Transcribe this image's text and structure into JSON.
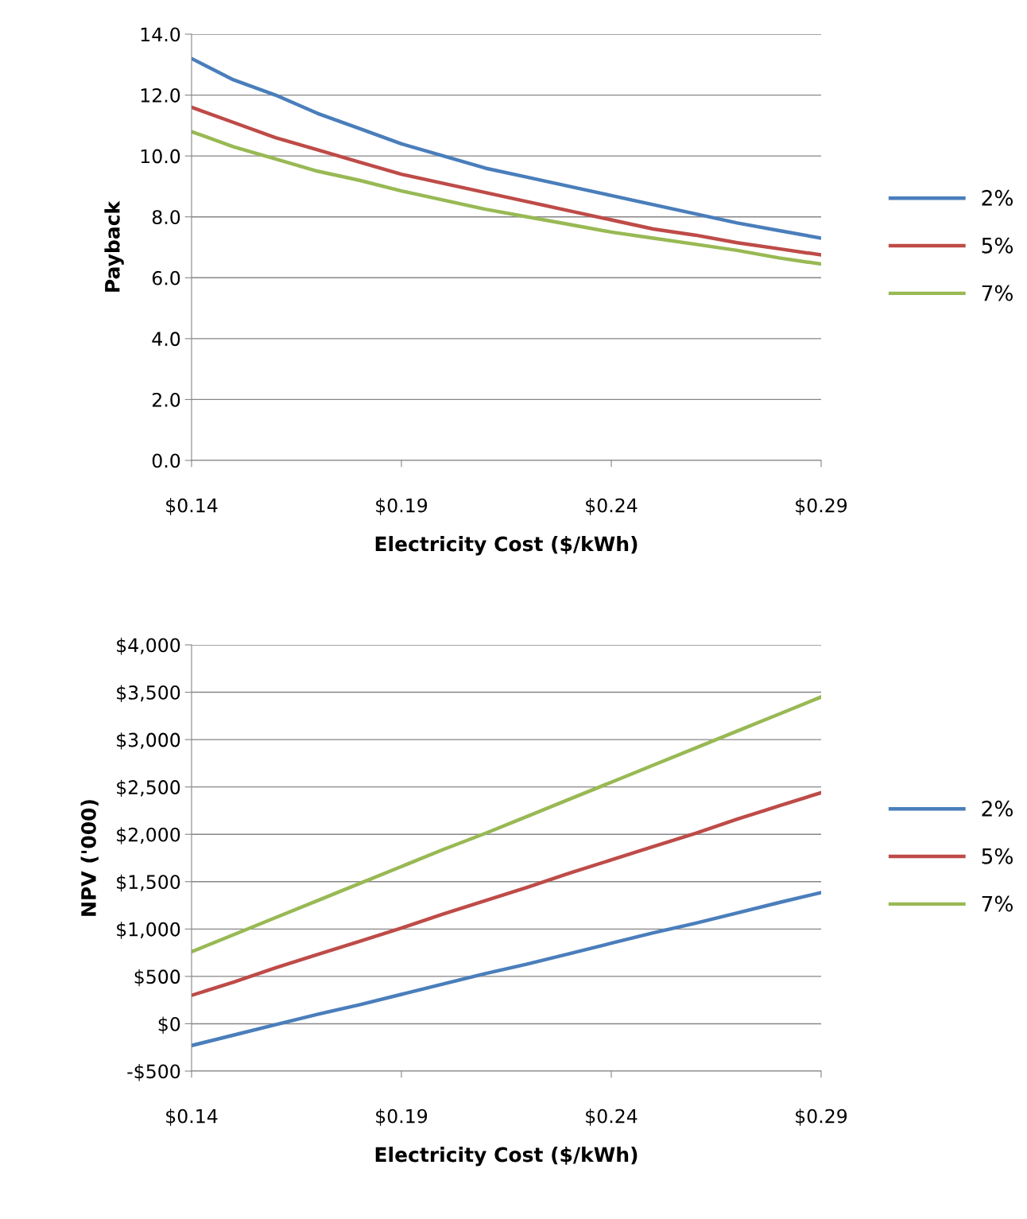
{
  "chart_data": [
    {
      "type": "line",
      "ylabel": "Payback",
      "xlabel": "Electricity Cost ($/kWh)",
      "x": [
        0.14,
        0.15,
        0.16,
        0.17,
        0.18,
        0.19,
        0.2,
        0.21,
        0.22,
        0.23,
        0.24,
        0.25,
        0.26,
        0.27,
        0.28,
        0.29
      ],
      "xlim": [
        0.14,
        0.29
      ],
      "xticks": [
        {
          "value": 0.14,
          "label": "$0.14"
        },
        {
          "value": 0.19,
          "label": "$0.19"
        },
        {
          "value": 0.24,
          "label": "$0.24"
        },
        {
          "value": 0.29,
          "label": "$0.29"
        }
      ],
      "ylim": [
        0,
        14
      ],
      "yticks": [
        {
          "value": 0,
          "label": "0.0"
        },
        {
          "value": 2,
          "label": "2.0"
        },
        {
          "value": 4,
          "label": "4.0"
        },
        {
          "value": 6,
          "label": "6.0"
        },
        {
          "value": 8,
          "label": "8.0"
        },
        {
          "value": 10,
          "label": "10.0"
        },
        {
          "value": 12,
          "label": "12.0"
        },
        {
          "value": 14,
          "label": "14.0"
        }
      ],
      "grid": "y",
      "legend": "right",
      "marker": "none",
      "line_style": "solid",
      "series": [
        {
          "name": "2%",
          "color": "#4a7ebb",
          "values": [
            13.2,
            12.5,
            12.0,
            11.4,
            10.9,
            10.4,
            10.0,
            9.6,
            9.3,
            9.0,
            8.7,
            8.4,
            8.1,
            7.8,
            7.55,
            7.3
          ]
        },
        {
          "name": "5%",
          "color": "#be4b48",
          "values": [
            11.6,
            11.1,
            10.6,
            10.2,
            9.8,
            9.4,
            9.1,
            8.8,
            8.5,
            8.2,
            7.9,
            7.6,
            7.4,
            7.15,
            6.95,
            6.75
          ]
        },
        {
          "name": "7%",
          "color": "#98b954",
          "values": [
            10.8,
            10.3,
            9.9,
            9.5,
            9.2,
            8.85,
            8.55,
            8.25,
            8.0,
            7.75,
            7.5,
            7.3,
            7.1,
            6.9,
            6.65,
            6.45
          ]
        }
      ]
    },
    {
      "type": "line",
      "ylabel": "NPV ('000)",
      "xlabel": "Electricity Cost ($/kWh)",
      "x": [
        0.14,
        0.15,
        0.16,
        0.17,
        0.18,
        0.19,
        0.2,
        0.21,
        0.22,
        0.23,
        0.24,
        0.25,
        0.26,
        0.27,
        0.28,
        0.29
      ],
      "xlim": [
        0.14,
        0.29
      ],
      "xticks": [
        {
          "value": 0.14,
          "label": "$0.14"
        },
        {
          "value": 0.19,
          "label": "$0.19"
        },
        {
          "value": 0.24,
          "label": "$0.24"
        },
        {
          "value": 0.29,
          "label": "$0.29"
        }
      ],
      "ylim": [
        -500,
        4000
      ],
      "yticks": [
        {
          "value": -500,
          "label": "-$500"
        },
        {
          "value": 0,
          "label": "$0"
        },
        {
          "value": 500,
          "label": "$500"
        },
        {
          "value": 1000,
          "label": "$1,000"
        },
        {
          "value": 1500,
          "label": "$1,500"
        },
        {
          "value": 2000,
          "label": "$2,000"
        },
        {
          "value": 2500,
          "label": "$2,500"
        },
        {
          "value": 3000,
          "label": "$3,000"
        },
        {
          "value": 3500,
          "label": "$3,500"
        },
        {
          "value": 4000,
          "label": "$4,000"
        }
      ],
      "grid": "y",
      "legend": "right",
      "marker": "none",
      "line_style": "solid",
      "series": [
        {
          "name": "2%",
          "color": "#4a7ebb",
          "values": [
            -230,
            -120,
            -10,
            100,
            200,
            310,
            420,
            530,
            630,
            740,
            850,
            960,
            1060,
            1170,
            1280,
            1385
          ]
        },
        {
          "name": "5%",
          "color": "#be4b48",
          "values": [
            300,
            440,
            590,
            730,
            870,
            1010,
            1160,
            1300,
            1440,
            1590,
            1730,
            1870,
            2010,
            2160,
            2300,
            2440
          ]
        },
        {
          "name": "7%",
          "color": "#98b954",
          "values": [
            760,
            940,
            1120,
            1300,
            1480,
            1660,
            1840,
            2010,
            2190,
            2370,
            2550,
            2730,
            2910,
            3090,
            3270,
            3450
          ]
        }
      ]
    }
  ]
}
